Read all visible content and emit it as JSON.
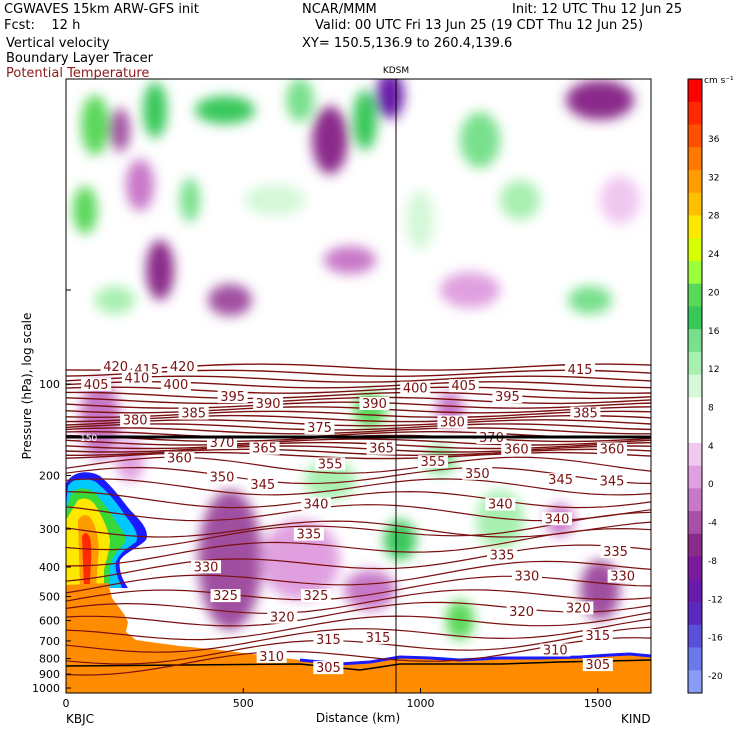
{
  "header": {
    "model": "CGWAVES 15km ARW-GFS init",
    "forecast": "Fcst:    12 h",
    "field1": "Vertical velocity",
    "field2": "Boundary Layer Tracer",
    "field3": "Potential Temperature",
    "center": "NCAR/MMM",
    "xy": "XY= 150.5,136.9 to 260.4,139.6",
    "init": "Init: 12 UTC Thu 12 Jun 25",
    "valid": "Valid: 00 UTC Fri 13 Jun 25 (19 CDT Thu 12 Jun 25)"
  },
  "colors": {
    "theta_contour": "#7a1010",
    "terrain": "#ff8c00",
    "terrain_edge": "#1a1aff"
  },
  "chart_data": {
    "type": "heatmap",
    "xlabel": "Distance (km)",
    "ylabel": "Pressure (hPa), log scale",
    "xlim": [
      0,
      1650
    ],
    "x_ticks": [
      "0",
      "500",
      "1000",
      "1500"
    ],
    "y_ticks": [
      "100",
      "200",
      "300",
      "400",
      "500",
      "600",
      "700",
      "800",
      "900",
      "1000"
    ],
    "y_scale": "log",
    "start_station": "KBJC",
    "end_station": "KIND",
    "marker_station": "KDSM",
    "marker_distance_km": 930,
    "tropopause_label": "150",
    "colorbar": {
      "units": "cm s⁻¹",
      "ticks": [
        "36",
        "32",
        "28",
        "24",
        "20",
        "16",
        "12",
        "8",
        "4",
        "0",
        "-4",
        "-8",
        "-12",
        "-16",
        "-20"
      ],
      "colors": [
        "#ff0000",
        "#ff2a00",
        "#ff5000",
        "#ff7800",
        "#ff9c00",
        "#ffc000",
        "#ffe800",
        "#d8ff00",
        "#9cff3c",
        "#5ad85a",
        "#38c85a",
        "#78e08c",
        "#a8f0b0",
        "#d4f8d8",
        "#ffffff",
        "#ffffff",
        "#f0c8f0",
        "#e0a0e0",
        "#c878c8",
        "#a850a8",
        "#8a2a8a",
        "#7a1a9c",
        "#6a1aaa",
        "#5a2abe",
        "#5a50d8",
        "#6a78e8",
        "#8a9cf8"
      ]
    },
    "theta_labels": [
      {
        "t": "420",
        "x": 140,
        "p": 90
      },
      {
        "t": "415",
        "x": 228,
        "p": 92
      },
      {
        "t": "420",
        "x": 328,
        "p": 90
      },
      {
        "t": "415",
        "x": 1450,
        "p": 92
      },
      {
        "t": "405",
        "x": 85,
        "p": 103
      },
      {
        "t": "410",
        "x": 200,
        "p": 98
      },
      {
        "t": "400",
        "x": 310,
        "p": 103
      },
      {
        "t": "400",
        "x": 985,
        "p": 106
      },
      {
        "t": "405",
        "x": 1122,
        "p": 104
      },
      {
        "t": "395",
        "x": 470,
        "p": 113
      },
      {
        "t": "390",
        "x": 570,
        "p": 119
      },
      {
        "t": "390",
        "x": 870,
        "p": 119
      },
      {
        "t": "395",
        "x": 1245,
        "p": 113
      },
      {
        "t": "380",
        "x": 195,
        "p": 135
      },
      {
        "t": "385",
        "x": 360,
        "p": 128
      },
      {
        "t": "380",
        "x": 1090,
        "p": 137
      },
      {
        "t": "385",
        "x": 1465,
        "p": 128
      },
      {
        "t": "375",
        "x": 715,
        "p": 143
      },
      {
        "t": "370",
        "x": 440,
        "p": 160
      },
      {
        "t": "370",
        "x": 1200,
        "p": 154
      },
      {
        "t": "365",
        "x": 560,
        "p": 167
      },
      {
        "t": "365",
        "x": 890,
        "p": 167
      },
      {
        "t": "360",
        "x": 1270,
        "p": 168
      },
      {
        "t": "360",
        "x": 1540,
        "p": 168
      },
      {
        "t": "360",
        "x": 320,
        "p": 180
      },
      {
        "t": "355",
        "x": 745,
        "p": 188
      },
      {
        "t": "355",
        "x": 1035,
        "p": 185
      },
      {
        "t": "350",
        "x": 440,
        "p": 208
      },
      {
        "t": "350",
        "x": 1160,
        "p": 202
      },
      {
        "t": "345",
        "x": 555,
        "p": 220
      },
      {
        "t": "345",
        "x": 1395,
        "p": 212
      },
      {
        "t": "345",
        "x": 1540,
        "p": 214
      },
      {
        "t": "340",
        "x": 705,
        "p": 255
      },
      {
        "t": "340",
        "x": 1225,
        "p": 255
      },
      {
        "t": "340",
        "x": 1385,
        "p": 285
      },
      {
        "t": "335",
        "x": 685,
        "p": 320
      },
      {
        "t": "335",
        "x": 1230,
        "p": 375
      },
      {
        "t": "335",
        "x": 1550,
        "p": 365
      },
      {
        "t": "330",
        "x": 395,
        "p": 410
      },
      {
        "t": "330",
        "x": 1300,
        "p": 440
      },
      {
        "t": "330",
        "x": 1570,
        "p": 440
      },
      {
        "t": "325",
        "x": 450,
        "p": 510
      },
      {
        "t": "325",
        "x": 705,
        "p": 510
      },
      {
        "t": "320",
        "x": 610,
        "p": 600
      },
      {
        "t": "320",
        "x": 1285,
        "p": 575
      },
      {
        "t": "320",
        "x": 1445,
        "p": 560
      },
      {
        "t": "315",
        "x": 740,
        "p": 710
      },
      {
        "t": "315",
        "x": 880,
        "p": 700
      },
      {
        "t": "315",
        "x": 1500,
        "p": 690
      },
      {
        "t": "310",
        "x": 580,
        "p": 808
      },
      {
        "t": "310",
        "x": 1380,
        "p": 770
      },
      {
        "t": "305",
        "x": 740,
        "p": 880
      },
      {
        "t": "305",
        "x": 1500,
        "p": 860
      }
    ]
  }
}
